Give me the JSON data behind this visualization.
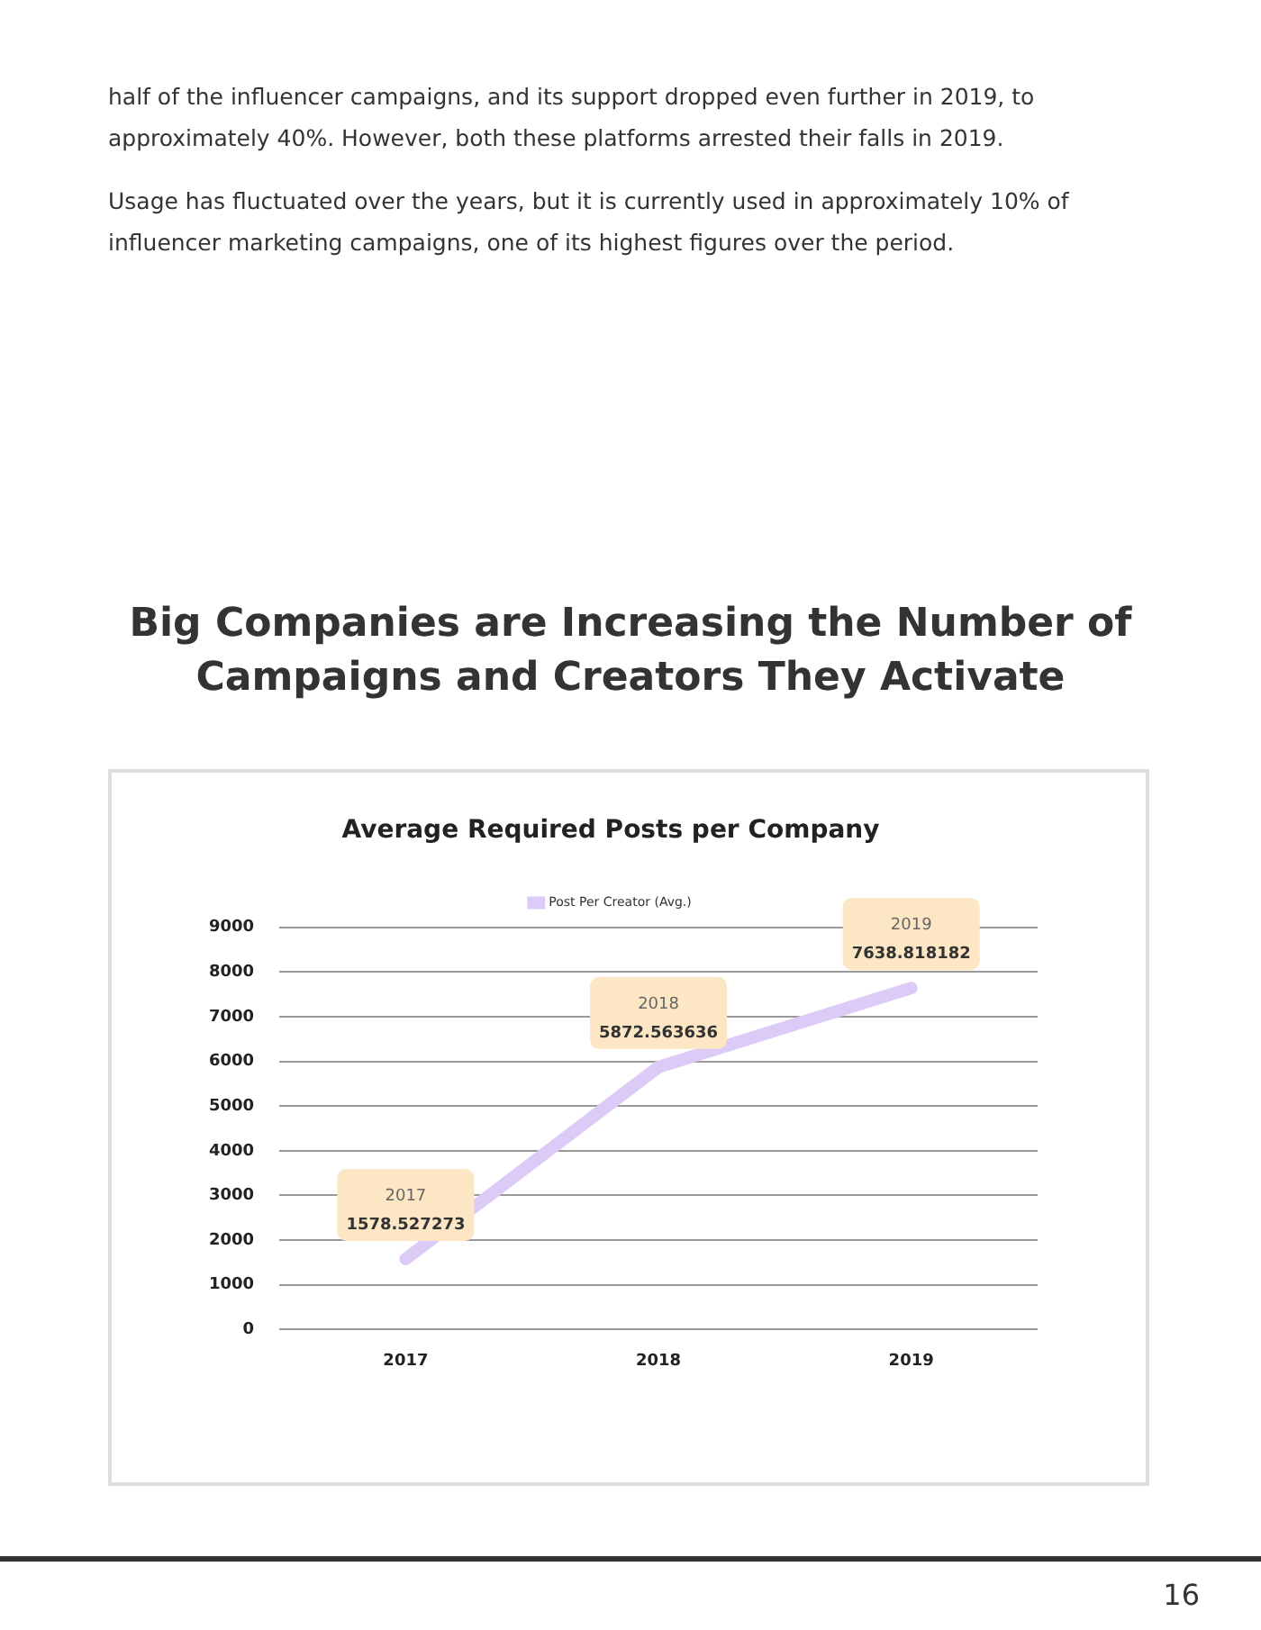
{
  "chart_data": {
    "type": "line",
    "title": "Big Companies are Increasing the Number of Campaigns and Creators They Activate",
    "subtitle": "Average Required Posts per Company",
    "categories": [
      "2017",
      "2018",
      "2019"
    ],
    "series": [
      {
        "name": "Post Per Creator (Avg.)",
        "color": "#dccbf7",
        "values": [
          1578.527273,
          5872.563636,
          7638.818182
        ]
      }
    ],
    "ylim": [
      0,
      9000
    ],
    "yticks": [
      0,
      1000,
      2000,
      3000,
      4000,
      5000,
      6000,
      7000,
      8000,
      9000
    ],
    "grid": "y",
    "legend": "top",
    "marker": "none",
    "line_style": "solid",
    "data_labels": true,
    "annotations": [
      "half of the influencer campaigns, and its support dropped even further in 2019, to approximately 40%. However, both these platforms arrested their falls in 2019.",
      "Usage has fluctuated over the years, but it is currently used in approximately 10% of influencer marketing campaigns, one of its highest figures over the period.",
      "16"
    ]
  }
}
